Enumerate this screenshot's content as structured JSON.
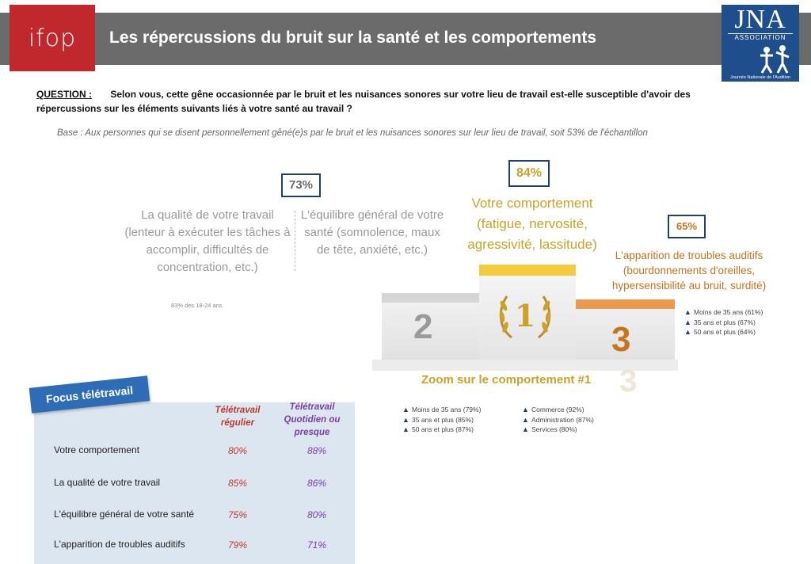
{
  "header": {
    "logo_left": "ifop",
    "title": "Les répercussions du bruit sur la santé et les comportements",
    "logo_right": {
      "name": "JNA",
      "association": "ASSOCIATION",
      "subtitle": "Journée Nationale de l'Audition"
    }
  },
  "question": {
    "label": "QUESTION :",
    "text": "Selon vous, cette gêne occasionnée par le bruit et les nuisances sonores sur votre lieu de travail est-elle susceptible d'avoir des répercussions sur les éléments suivants liés à votre santé au travail ?"
  },
  "base": "Base : Aux personnes qui se disent personnellement gêné(e)s par le bruit et les nuisances sonores sur leur lieu de travail, soit 53% de l'échantillon",
  "podium": {
    "first": {
      "rank": "1",
      "pct": "84%",
      "label": "Votre comportement (fatigue, nervosité, agressivité, lassitude)"
    },
    "second": {
      "rank": "2",
      "pct": "73%",
      "label_quality": "La qualité de votre travail (lenteur à exécuter les tâches à accomplir, difficultés de concentration, etc.)",
      "label_equilibre": "L'équilibre général de votre santé (somnolence, maux de tête, anxiété, etc.)",
      "note": "83% des 18-24 ans"
    },
    "third": {
      "rank": "3",
      "pct": "65%",
      "label": "L'apparition de troubles auditifs (bourdonnements d'oreilles, hypersensibilité au bruit, surdité)",
      "stats": [
        "Moins de 35 ans (61%)",
        "35 ans et plus (67%)",
        "50 ans et plus (64%)"
      ]
    }
  },
  "zoom": {
    "title": "Zoom sur le comportement #1",
    "ghost_rank": "3",
    "stats_age": [
      "Moins de 35 ans (79%)",
      "35 ans et plus (85%)",
      "50 ans et plus (87%)"
    ],
    "stats_sector": [
      "Commerce (92%)",
      "Administration (87%)",
      "Services (80%)"
    ]
  },
  "focus": {
    "badge": "Focus télétravail",
    "col1": "Télétravail régulier",
    "col2": "Télétravail Quotidien ou presque",
    "rows": [
      {
        "label": "Votre comportement",
        "v1": "80%",
        "v2": "88%"
      },
      {
        "label": "La qualité de votre travail",
        "v1": "85%",
        "v2": "86%"
      },
      {
        "label": "L'équilibre général de votre santé",
        "v1": "75%",
        "v2": "80%"
      },
      {
        "label": "L'apparition de troubles auditifs",
        "v1": "79%",
        "v2": "71%"
      }
    ]
  },
  "colors": {
    "header_bg": "#6b6b6b",
    "ifop_red": "#c0282d",
    "jna_blue": "#1f4e8c",
    "gold": "#c9a227",
    "orange": "#c8731e",
    "focus_bg": "#dce6f1",
    "badge_blue": "#2e6cb5"
  },
  "icons": [
    "laurel-wreath-icon",
    "triangle-bullet-icon",
    "people-figures-icon"
  ]
}
